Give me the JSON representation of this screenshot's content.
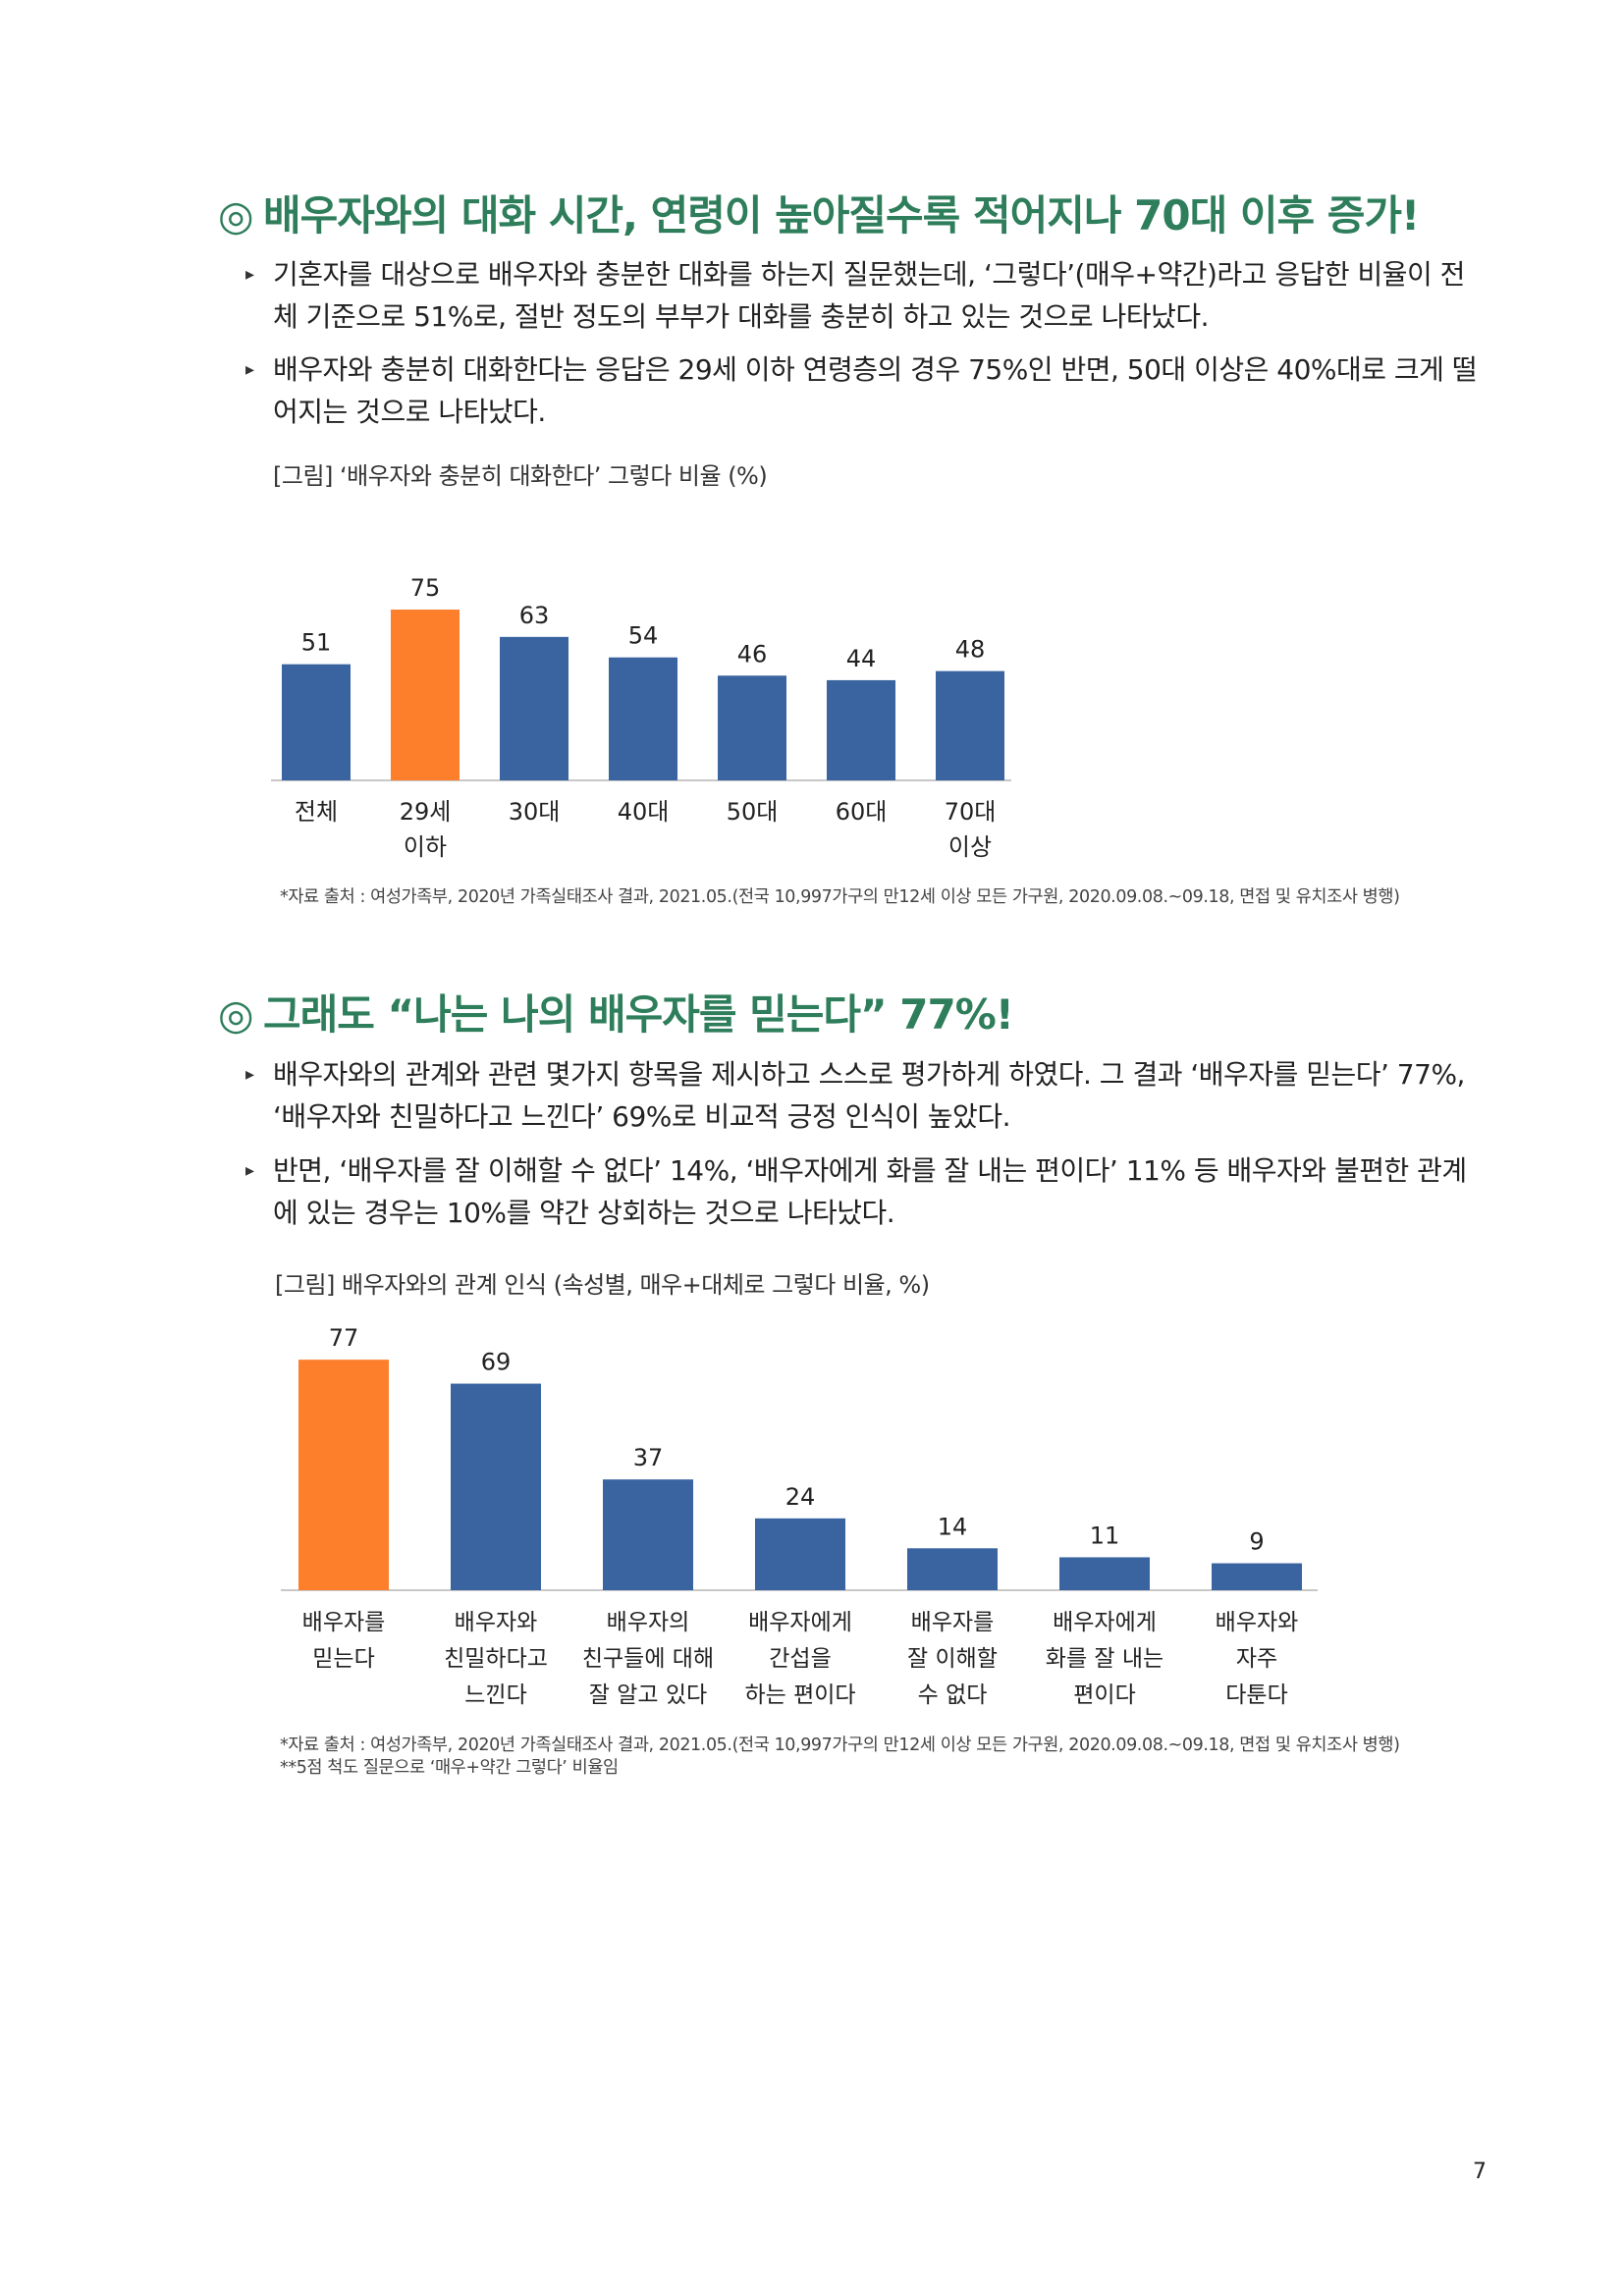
{
  "section1": {
    "mark": "◎",
    "heading": "배우자와의 대화 시간, 연령이 높아질수록 적어지나 70대 이후 증가!",
    "bullets": [
      "기혼자를 대상으로 배우자와 충분한 대화를 하는지 질문했는데, ‘그렇다’(매우+약간)라고 응답한 비율이 전체 기준으로 51%로, 절반 정도의 부부가 대화를 충분히 하고 있는 것으로 나타났다.",
      "배우자와 충분히 대화한다는 응답은 29세 이하 연령층의 경우 75%인 반면, 50대 이상은 40%대로 크게 떨어지는 것으로 나타났다."
    ],
    "caption": "[그림] ‘배우자와 충분히 대화한다’ 그렇다 비율 (%)",
    "source": "*자료 출처 : 여성가족부, 2020년 가족실태조사 결과, 2021.05.(전국 10,997가구의 만12세 이상 모든 가구원, 2020.09.08.~09.18, 면접 및 유치조사 병행)"
  },
  "section2": {
    "mark": "◎",
    "heading": "그래도 “나는 나의 배우자를 믿는다” 77%!",
    "bullets": [
      "배우자와의 관계와 관련 몇가지 항목을 제시하고 스스로 평가하게 하였다. 그 결과 ‘배우자를 믿는다’ 77%, ‘배우자와 친밀하다고 느낀다’ 69%로 비교적 긍정 인식이 높았다.",
      "반면, ‘배우자를 잘 이해할 수 없다’ 14%, ‘배우자에게 화를 잘 내는 편이다’ 11% 등 배우자와 불편한 관계에 있는 경우는 10%를 약간 상회하는 것으로 나타났다."
    ],
    "caption": "[그림] 배우자와의 관계 인식 (속성별, 매우+대체로 그렇다 비율, %)",
    "source": "*자료 출처 : 여성가족부, 2020년 가족실태조사 결과, 2021.05.(전국 10,997가구의 만12세 이상 모든 가구원, 2020.09.08.~09.18, 면접 및 유치조사 병행)",
    "note": "**5점 척도 질문으로 ‘매우+약간 그렇다’ 비율임"
  },
  "page_number": "7",
  "colors": {
    "heading": "#2e7d5b",
    "bar": "#3a64a0",
    "highlight": "#fd7f2c",
    "axis": "#c8c8c8"
  },
  "chart_data": [
    {
      "type": "bar",
      "categories": [
        "전체",
        "29세\n이하",
        "30대",
        "40대",
        "50대",
        "60대",
        "70대\n이상"
      ],
      "values": [
        51,
        75,
        63,
        54,
        46,
        44,
        48
      ],
      "highlight_index": 1,
      "ylim": [
        0,
        100
      ],
      "grid": false,
      "legend": "none"
    },
    {
      "type": "bar",
      "categories": [
        "배우자를\n믿는다",
        "배우자와\n친밀하다고\n느낀다",
        "배우자의\n친구들에 대해\n잘 알고 있다",
        "배우자에게\n간섭을\n하는 편이다",
        "배우자를\n잘 이해할\n수 없다",
        "배우자에게\n화를 잘 내는\n편이다",
        "배우자와\n자주\n다툰다"
      ],
      "values": [
        77,
        69,
        37,
        24,
        14,
        11,
        9
      ],
      "highlight_index": 0,
      "ylim": [
        0,
        100
      ],
      "grid": false,
      "legend": "none"
    }
  ]
}
